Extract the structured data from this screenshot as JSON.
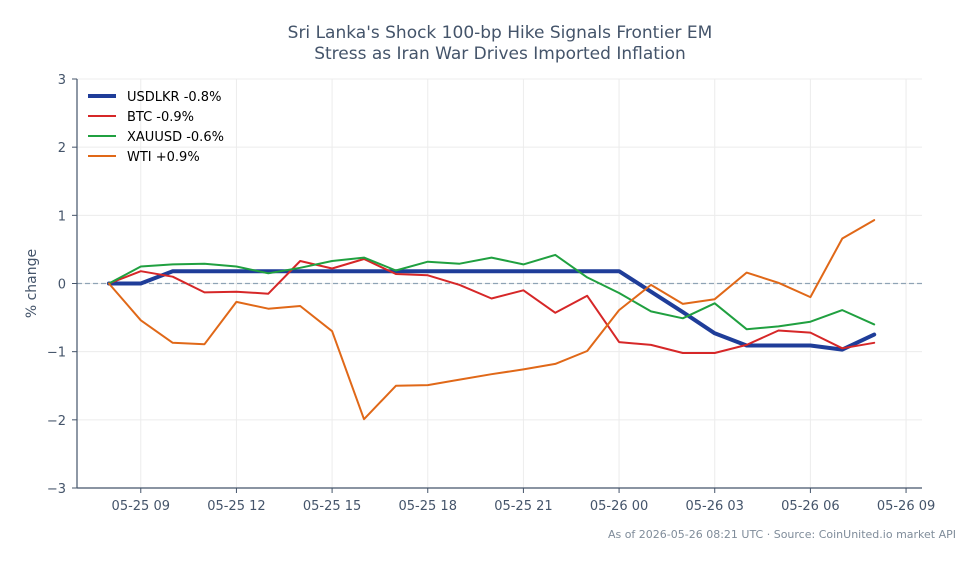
{
  "chart_data": {
    "type": "line",
    "title": "Sri Lanka's Shock 100-bp Hike Signals Frontier EM\nStress as Iran War Drives Imported Inflation",
    "xlabel": "",
    "ylabel": "% change",
    "ylim": [
      -3,
      3
    ],
    "yticks": [
      3,
      2,
      1,
      0,
      -1,
      -2,
      -3
    ],
    "ytick_labels": [
      "3",
      "2",
      "1",
      "0",
      "−1",
      "−2",
      "−3"
    ],
    "xlim": [
      "2026-05-25 07:00",
      "2026-05-26 09:30"
    ],
    "xticks": [
      "2026-05-25 09:00",
      "2026-05-25 12:00",
      "2026-05-25 15:00",
      "2026-05-25 18:00",
      "2026-05-25 21:00",
      "2026-05-26 00:00",
      "2026-05-26 03:00",
      "2026-05-26 06:00",
      "2026-05-26 09:00"
    ],
    "xtick_labels": [
      "05-25 09",
      "05-25 12",
      "05-25 15",
      "05-25 18",
      "05-25 21",
      "05-26 00",
      "05-26 03",
      "05-26 06",
      "05-26 09"
    ],
    "x": [
      "2026-05-25 08:00",
      "2026-05-25 09:00",
      "2026-05-25 10:00",
      "2026-05-25 11:00",
      "2026-05-25 12:00",
      "2026-05-25 13:00",
      "2026-05-25 14:00",
      "2026-05-25 15:00",
      "2026-05-25 16:00",
      "2026-05-25 17:00",
      "2026-05-25 18:00",
      "2026-05-25 19:00",
      "2026-05-25 20:00",
      "2026-05-25 21:00",
      "2026-05-25 22:00",
      "2026-05-25 23:00",
      "2026-05-26 00:00",
      "2026-05-26 01:00",
      "2026-05-26 02:00",
      "2026-05-26 03:00",
      "2026-05-26 04:00",
      "2026-05-26 05:00",
      "2026-05-26 06:00",
      "2026-05-26 07:00",
      "2026-05-26 08:00"
    ],
    "series": [
      {
        "name": "USDLKR -0.8%",
        "color": "#1f3d99",
        "width": 4,
        "values": [
          0,
          0,
          0.18,
          0.18,
          0.18,
          0.18,
          0.18,
          0.18,
          0.18,
          0.18,
          0.18,
          0.18,
          0.18,
          0.18,
          0.18,
          0.18,
          0.18,
          -0.12,
          -0.42,
          -0.73,
          -0.91,
          -0.91,
          -0.91,
          -0.97,
          -0.75
        ]
      },
      {
        "name": "BTC -0.9%",
        "color": "#d62728",
        "width": 2,
        "values": [
          0,
          0.18,
          0.1,
          -0.13,
          -0.12,
          -0.15,
          0.33,
          0.22,
          0.36,
          0.14,
          0.12,
          -0.02,
          -0.22,
          -0.1,
          -0.43,
          -0.18,
          -0.86,
          -0.9,
          -1.02,
          -1.02,
          -0.9,
          -0.69,
          -0.72,
          -0.95,
          -0.87
        ]
      },
      {
        "name": "XAUUSD -0.6%",
        "color": "#20a040",
        "width": 2,
        "values": [
          0,
          0.25,
          0.28,
          0.29,
          0.25,
          0.15,
          0.23,
          0.33,
          0.38,
          0.19,
          0.32,
          0.29,
          0.38,
          0.28,
          0.42,
          0.09,
          -0.14,
          -0.41,
          -0.51,
          -0.29,
          -0.67,
          -0.63,
          -0.56,
          -0.39,
          -0.6
        ]
      },
      {
        "name": "WTI +0.9%",
        "color": "#e06818",
        "width": 2,
        "values": [
          0,
          -0.54,
          -0.87,
          -0.89,
          -0.27,
          -0.37,
          -0.33,
          -0.7,
          -1.99,
          -1.5,
          -1.49,
          -1.41,
          -1.33,
          -1.26,
          -1.18,
          -0.99,
          -0.39,
          -0.02,
          -0.3,
          -0.23,
          0.16,
          0.01,
          -0.2,
          0.66,
          0.93
        ]
      }
    ],
    "reference_line": {
      "y": 0,
      "style": "dashed",
      "color": "#8fa3b5"
    },
    "grid": true,
    "legend_position": "top-left"
  },
  "footer": "As of 2026-05-26 08:21 UTC · Source: CoinUnited.io market API"
}
